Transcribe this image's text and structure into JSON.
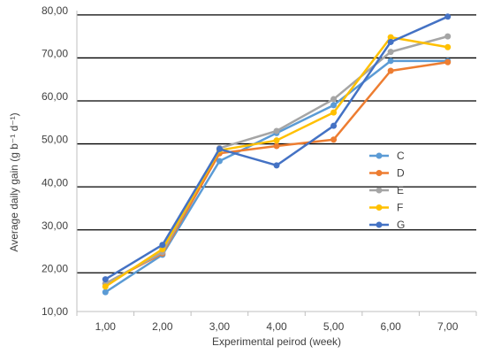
{
  "chart_data": {
    "type": "line",
    "xlabel": "Experimental peirod (week)",
    "ylabel": "Average daily gain (g b⁻¹ d⁻¹)",
    "x": [
      1,
      2,
      3,
      4,
      5,
      6,
      7
    ],
    "x_tick_labels": [
      "1,00",
      "2,00",
      "3,00",
      "4,00",
      "5,00",
      "6,00",
      "7,00"
    ],
    "xlim": [
      0.5,
      7.5
    ],
    "ylim": [
      10,
      80
    ],
    "y_tick_values": [
      10,
      20,
      30,
      40,
      50,
      60,
      70,
      80
    ],
    "y_tick_labels": [
      "10,00",
      "20,00",
      "30,00",
      "40,00",
      "50,00",
      "60,00",
      "70,00",
      "80,00"
    ],
    "gridlines": [
      19,
      29,
      39,
      49,
      59,
      69,
      79
    ],
    "grid": true,
    "legend_position": "right",
    "series": [
      {
        "name": "C",
        "color": "#5B9BD5",
        "values": [
          14.5,
          23.2,
          45.0,
          51.5,
          58.0,
          68.3,
          68.3
        ]
      },
      {
        "name": "D",
        "color": "#ED7D31",
        "values": [
          16.5,
          23.5,
          46.8,
          48.5,
          50.0,
          66.0,
          68.0
        ]
      },
      {
        "name": "E",
        "color": "#A5A5A5",
        "values": [
          16.5,
          23.8,
          48.0,
          52.0,
          59.4,
          70.4,
          74.0
        ]
      },
      {
        "name": "F",
        "color": "#FFC000",
        "values": [
          15.8,
          24.5,
          47.5,
          49.8,
          56.3,
          73.8,
          71.5
        ]
      },
      {
        "name": "G",
        "color": "#4472C4",
        "values": [
          17.5,
          25.5,
          47.8,
          44.0,
          53.2,
          72.7,
          78.6
        ]
      }
    ]
  }
}
